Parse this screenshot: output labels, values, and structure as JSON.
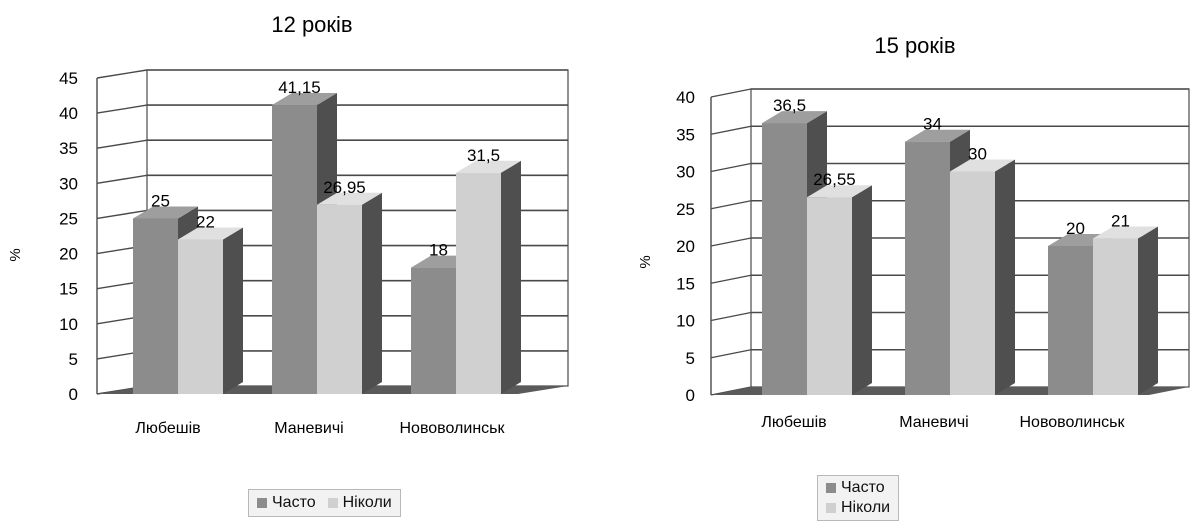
{
  "chart_data": [
    {
      "type": "bar",
      "title": "12 років",
      "ylabel": "%",
      "ylim": [
        0,
        45
      ],
      "yticks": [
        0,
        5,
        10,
        15,
        20,
        25,
        30,
        35,
        40,
        45
      ],
      "categories": [
        "Любешів",
        "Маневичі",
        "Нововолинськ"
      ],
      "series": [
        {
          "name": "Часто",
          "values": [
            25,
            41.15,
            18
          ],
          "labels": [
            "25",
            "41,15",
            "18"
          ]
        },
        {
          "name": "Ніколи",
          "values": [
            22,
            26.95,
            31.5
          ],
          "labels": [
            "22",
            "26,95",
            "31,5"
          ]
        }
      ],
      "legend": "bottom",
      "grid": true
    },
    {
      "type": "bar",
      "title": "15 років",
      "ylabel": "%",
      "ylim": [
        0,
        40
      ],
      "yticks": [
        0,
        5,
        10,
        15,
        20,
        25,
        30,
        35,
        40
      ],
      "categories": [
        "Любешів",
        "Маневичі",
        "Нововолинськ"
      ],
      "series": [
        {
          "name": "Часто",
          "values": [
            36.5,
            34,
            20
          ],
          "labels": [
            "36,5",
            "34",
            "20"
          ]
        },
        {
          "name": "Ніколи",
          "values": [
            26.55,
            30,
            21
          ],
          "labels": [
            "26,55",
            "30",
            "21"
          ]
        }
      ],
      "legend": "bottom",
      "grid": true
    }
  ],
  "colors": {
    "often_front": "#8c8c8c",
    "often_top": "#9e9e9e",
    "never_front": "#d0d0d0",
    "never_top": "#e0e0e0",
    "bar_side": "#4f4f4f",
    "floor": "#5a5a5a",
    "gridline": "#4a4a4a"
  }
}
